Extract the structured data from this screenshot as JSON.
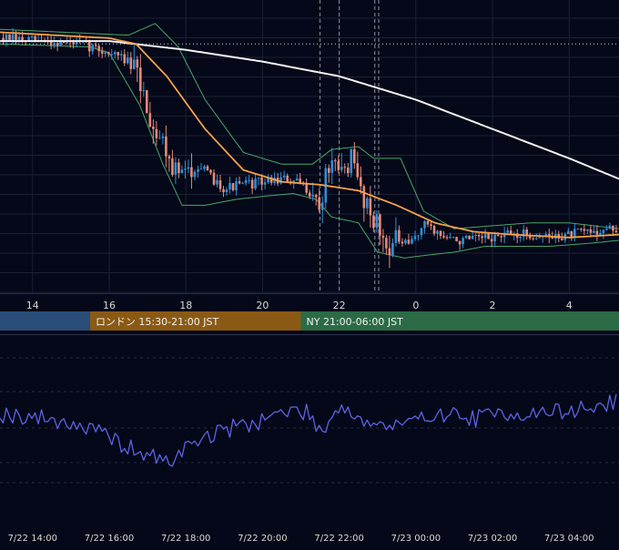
{
  "colors": {
    "background": "#050818",
    "grid": "#1b2036",
    "candle_up": "#2f8fd6",
    "candle_down": "#e48a78",
    "ma_fast": "#f5a14a",
    "ma_slow": "#f2f2f2",
    "bollinger": "#46a86a",
    "rsi_line": "#5b64e6",
    "session_tokyo": "#2a4d7a",
    "session_london": "#8a5a14",
    "session_ny": "#2b6b45"
  },
  "sessions": [
    {
      "label": "",
      "start": 12.0,
      "end": 15.5,
      "color_key": "session_tokyo"
    },
    {
      "label": "ロンドン 15:30-21:00 JST",
      "start": 15.5,
      "end": 21.0,
      "color_key": "session_london"
    },
    {
      "label": "NY 21:00-06:00 JST",
      "start": 21.0,
      "end": 30.0,
      "color_key": "session_ny"
    }
  ],
  "chart_data": {
    "type": "line",
    "x_range": [
      13.15,
      29.3
    ],
    "hour_ticks": [
      {
        "x": 14,
        "label": "14"
      },
      {
        "x": 16,
        "label": "16"
      },
      {
        "x": 18,
        "label": "18"
      },
      {
        "x": 20,
        "label": "20"
      },
      {
        "x": 22,
        "label": "22"
      },
      {
        "x": 24,
        "label": "0"
      },
      {
        "x": 26,
        "label": "2"
      },
      {
        "x": 28,
        "label": "4"
      }
    ],
    "date_ticks": [
      {
        "x": 14,
        "label": "7/22 14:00"
      },
      {
        "x": 16,
        "label": "7/22 16:00"
      },
      {
        "x": 18,
        "label": "7/22 18:00"
      },
      {
        "x": 20,
        "label": "7/22 20:00"
      },
      {
        "x": 22,
        "label": "7/22 22:00"
      },
      {
        "x": 24,
        "label": "7/23 00:00"
      },
      {
        "x": 26,
        "label": "7/23 02:00"
      },
      {
        "x": 28,
        "label": "7/23 04:00"
      }
    ],
    "price_ylim": [
      0,
      100
    ],
    "reference_level": 85,
    "event_markers": [
      21.5,
      22.0,
      22.93,
      23.03
    ],
    "price_anchors": [
      [
        13.15,
        87
      ],
      [
        14.0,
        86
      ],
      [
        15.0,
        85.5
      ],
      [
        15.5,
        84
      ],
      [
        16.0,
        82
      ],
      [
        16.4,
        80
      ],
      [
        16.7,
        75
      ],
      [
        16.9,
        68
      ],
      [
        17.1,
        58
      ],
      [
        17.4,
        52
      ],
      [
        17.7,
        42
      ],
      [
        18.0,
        40
      ],
      [
        18.3,
        44
      ],
      [
        18.6,
        40
      ],
      [
        19.0,
        36
      ],
      [
        19.5,
        37
      ],
      [
        20.0,
        38
      ],
      [
        20.5,
        39
      ],
      [
        21.0,
        37
      ],
      [
        21.3,
        34
      ],
      [
        21.5,
        28
      ],
      [
        21.7,
        44
      ],
      [
        22.0,
        40
      ],
      [
        22.3,
        46
      ],
      [
        22.6,
        34
      ],
      [
        22.9,
        26
      ],
      [
        23.2,
        16
      ],
      [
        23.5,
        18
      ],
      [
        23.8,
        16
      ],
      [
        24.0,
        20
      ],
      [
        24.3,
        24
      ],
      [
        24.6,
        20
      ],
      [
        25.0,
        18
      ],
      [
        25.5,
        18
      ],
      [
        26.0,
        19
      ],
      [
        26.5,
        20
      ],
      [
        27.0,
        20
      ],
      [
        27.5,
        19
      ],
      [
        28.0,
        20
      ],
      [
        28.5,
        21
      ],
      [
        29.3,
        22
      ]
    ],
    "ma_slow": [
      [
        13.15,
        86
      ],
      [
        16.0,
        86
      ],
      [
        18.0,
        83
      ],
      [
        20.0,
        79
      ],
      [
        22.0,
        74
      ],
      [
        24.0,
        66
      ],
      [
        26.0,
        56
      ],
      [
        28.0,
        46
      ],
      [
        29.3,
        39
      ]
    ],
    "ma_fast": [
      [
        13.15,
        89
      ],
      [
        16.0,
        87
      ],
      [
        16.7,
        85
      ],
      [
        17.5,
        74
      ],
      [
        18.5,
        56
      ],
      [
        19.5,
        42
      ],
      [
        20.5,
        38
      ],
      [
        21.5,
        37
      ],
      [
        22.5,
        35
      ],
      [
        23.5,
        30
      ],
      [
        24.5,
        24
      ],
      [
        25.5,
        21
      ],
      [
        26.5,
        20
      ],
      [
        28.0,
        19
      ],
      [
        29.3,
        20
      ]
    ],
    "bb_upper": [
      [
        13.15,
        90
      ],
      [
        16.5,
        88
      ],
      [
        17.2,
        92
      ],
      [
        17.8,
        84
      ],
      [
        18.5,
        66
      ],
      [
        19.5,
        48
      ],
      [
        20.5,
        44
      ],
      [
        21.3,
        44
      ],
      [
        21.8,
        49
      ],
      [
        22.5,
        50
      ],
      [
        22.9,
        46
      ],
      [
        23.6,
        46
      ],
      [
        24.2,
        28
      ],
      [
        25.0,
        22
      ],
      [
        26.0,
        23
      ],
      [
        27.0,
        24
      ],
      [
        28.0,
        24
      ],
      [
        29.3,
        22
      ]
    ],
    "bb_lower": [
      [
        13.15,
        85
      ],
      [
        15.5,
        84
      ],
      [
        16.0,
        82
      ],
      [
        16.8,
        64
      ],
      [
        17.4,
        44
      ],
      [
        17.9,
        30
      ],
      [
        18.5,
        30
      ],
      [
        19.3,
        32
      ],
      [
        20.0,
        33
      ],
      [
        20.8,
        34
      ],
      [
        21.4,
        32
      ],
      [
        21.8,
        26
      ],
      [
        22.5,
        24
      ],
      [
        23.0,
        14
      ],
      [
        23.7,
        12
      ],
      [
        24.3,
        13
      ],
      [
        25.0,
        14
      ],
      [
        25.8,
        16
      ],
      [
        26.5,
        16
      ],
      [
        27.5,
        16
      ],
      [
        28.5,
        17
      ],
      [
        29.3,
        18
      ]
    ],
    "rsi_ylim": [
      0,
      100
    ],
    "rsi_anchors": [
      [
        13.15,
        57
      ],
      [
        14.0,
        55
      ],
      [
        15.0,
        52
      ],
      [
        15.5,
        48
      ],
      [
        16.0,
        44
      ],
      [
        16.5,
        38
      ],
      [
        17.0,
        34
      ],
      [
        17.5,
        30
      ],
      [
        17.8,
        34
      ],
      [
        18.2,
        42
      ],
      [
        18.8,
        46
      ],
      [
        19.3,
        50
      ],
      [
        19.8,
        52
      ],
      [
        20.2,
        56
      ],
      [
        20.7,
        58
      ],
      [
        21.1,
        58
      ],
      [
        21.4,
        52
      ],
      [
        21.6,
        45
      ],
      [
        21.9,
        62
      ],
      [
        22.3,
        58
      ],
      [
        22.7,
        52
      ],
      [
        23.2,
        50
      ],
      [
        23.6,
        50
      ],
      [
        24.0,
        52
      ],
      [
        24.5,
        58
      ],
      [
        25.0,
        56
      ],
      [
        25.5,
        54
      ],
      [
        26.0,
        56
      ],
      [
        26.5,
        58
      ],
      [
        27.0,
        56
      ],
      [
        27.5,
        58
      ],
      [
        28.0,
        58
      ],
      [
        28.5,
        60
      ],
      [
        29.0,
        62
      ],
      [
        29.3,
        64
      ]
    ]
  }
}
